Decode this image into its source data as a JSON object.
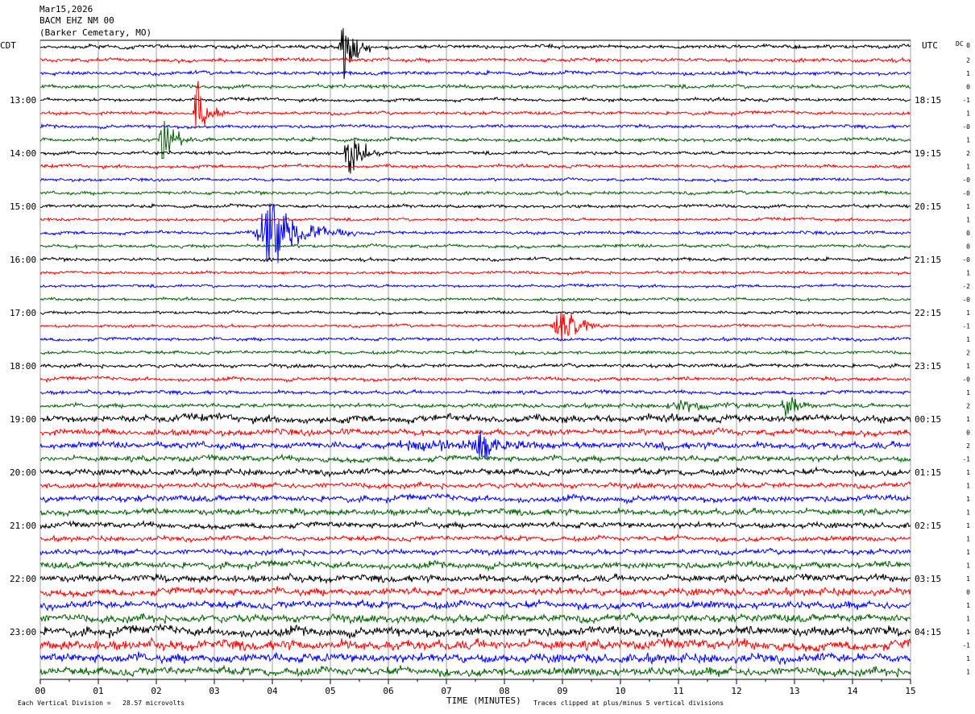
{
  "header": {
    "date": "Mar15,2026",
    "station": "BACM EHZ NM 00",
    "location": "(Barker Cemetary, MO)"
  },
  "left_axis_label": "CDT",
  "right_axis_label": "UTC",
  "dc_label": "DC",
  "footer": {
    "xlabel": "TIME (MINUTES)",
    "scale_note": "Each Vertical Division =   28.57 microvolts",
    "clip_note": "Traces clipped at plus/minus 5 vertical divisions"
  },
  "colors": {
    "black": "#000000",
    "red": "#ff0000",
    "blue": "#0000ff",
    "green": "#006400",
    "grid": "#a0a0a0"
  },
  "chart_data": {
    "type": "line",
    "title": "BACM EHZ NM 00",
    "xlabel": "TIME (MINUTES)",
    "xlim": [
      0,
      15
    ],
    "x_ticks": [
      "00",
      "01",
      "02",
      "03",
      "04",
      "05",
      "06",
      "07",
      "08",
      "09",
      "10",
      "11",
      "12",
      "13",
      "14",
      "15"
    ],
    "trace_count": 48,
    "trace_minutes": 15,
    "trace_colors": [
      "black",
      "red",
      "blue",
      "green"
    ],
    "left_hour_labels": [
      {
        "trace": 4,
        "label": "13:00"
      },
      {
        "trace": 8,
        "label": "14:00"
      },
      {
        "trace": 12,
        "label": "15:00"
      },
      {
        "trace": 16,
        "label": "16:00"
      },
      {
        "trace": 20,
        "label": "17:00"
      },
      {
        "trace": 24,
        "label": "18:00"
      },
      {
        "trace": 28,
        "label": "19:00"
      },
      {
        "trace": 32,
        "label": "20:00"
      },
      {
        "trace": 36,
        "label": "21:00"
      },
      {
        "trace": 40,
        "label": "22:00"
      },
      {
        "trace": 44,
        "label": "23:00"
      }
    ],
    "right_hour_labels": [
      {
        "trace": 4,
        "label": "18:15"
      },
      {
        "trace": 8,
        "label": "19:15"
      },
      {
        "trace": 12,
        "label": "20:15"
      },
      {
        "trace": 16,
        "label": "21:15"
      },
      {
        "trace": 20,
        "label": "22:15"
      },
      {
        "trace": 24,
        "label": "23:15"
      },
      {
        "trace": 28,
        "label": "00:15"
      },
      {
        "trace": 32,
        "label": "01:15"
      },
      {
        "trace": 36,
        "label": "02:15"
      },
      {
        "trace": 40,
        "label": "03:15"
      },
      {
        "trace": 44,
        "label": "04:15"
      }
    ],
    "dc_offsets": [
      "0",
      "2",
      "1",
      "0",
      "-1",
      "1",
      "-0",
      "1",
      "2",
      "1",
      "-0",
      "-0",
      "1",
      "1",
      "0",
      "0",
      "-0",
      "1",
      "-2",
      "-0",
      "1",
      "-1",
      "1",
      "2",
      "1",
      "-0",
      "1",
      "2",
      "1",
      "0",
      "2",
      "-1",
      "1",
      "1",
      "1",
      "1",
      "1",
      "1",
      "1",
      "1",
      "1",
      "0",
      "1",
      "1",
      "1",
      "-1",
      "1",
      "1"
    ],
    "noise_levels": [
      0.9,
      0.9,
      0.9,
      0.9,
      0.8,
      0.8,
      0.8,
      0.9,
      0.8,
      0.8,
      0.7,
      0.8,
      0.8,
      0.7,
      0.8,
      0.8,
      0.8,
      0.7,
      0.7,
      0.7,
      0.7,
      0.7,
      0.8,
      0.8,
      0.9,
      0.9,
      0.9,
      1.0,
      1.8,
      1.5,
      1.6,
      1.4,
      1.5,
      1.3,
      1.5,
      1.5,
      1.4,
      1.2,
      1.3,
      1.6,
      1.7,
      1.8,
      1.8,
      1.9,
      2.2,
      2.4,
      2.2,
      2.0
    ],
    "events": [
      {
        "trace": 0,
        "minute": 5.2,
        "amplitude": 38,
        "duration": 0.5
      },
      {
        "trace": 5,
        "minute": 2.7,
        "amplitude": 32,
        "duration": 0.5
      },
      {
        "trace": 7,
        "minute": 2.1,
        "amplitude": 28,
        "duration": 0.5
      },
      {
        "trace": 8,
        "minute": 5.3,
        "amplitude": 26,
        "duration": 0.6
      },
      {
        "trace": 14,
        "minute": 3.9,
        "amplitude": 30,
        "duration": 1.6
      },
      {
        "trace": 21,
        "minute": 8.95,
        "amplitude": 22,
        "duration": 0.9
      },
      {
        "trace": 27,
        "minute": 12.85,
        "amplitude": 16,
        "duration": 0.5
      },
      {
        "trace": 27,
        "minute": 11.0,
        "amplitude": 6,
        "duration": 1.6
      },
      {
        "trace": 30,
        "minute": 7.55,
        "amplitude": 20,
        "duration": 0.9
      },
      {
        "trace": 30,
        "minute": 6.5,
        "amplitude": 5,
        "duration": 4.0
      }
    ]
  }
}
